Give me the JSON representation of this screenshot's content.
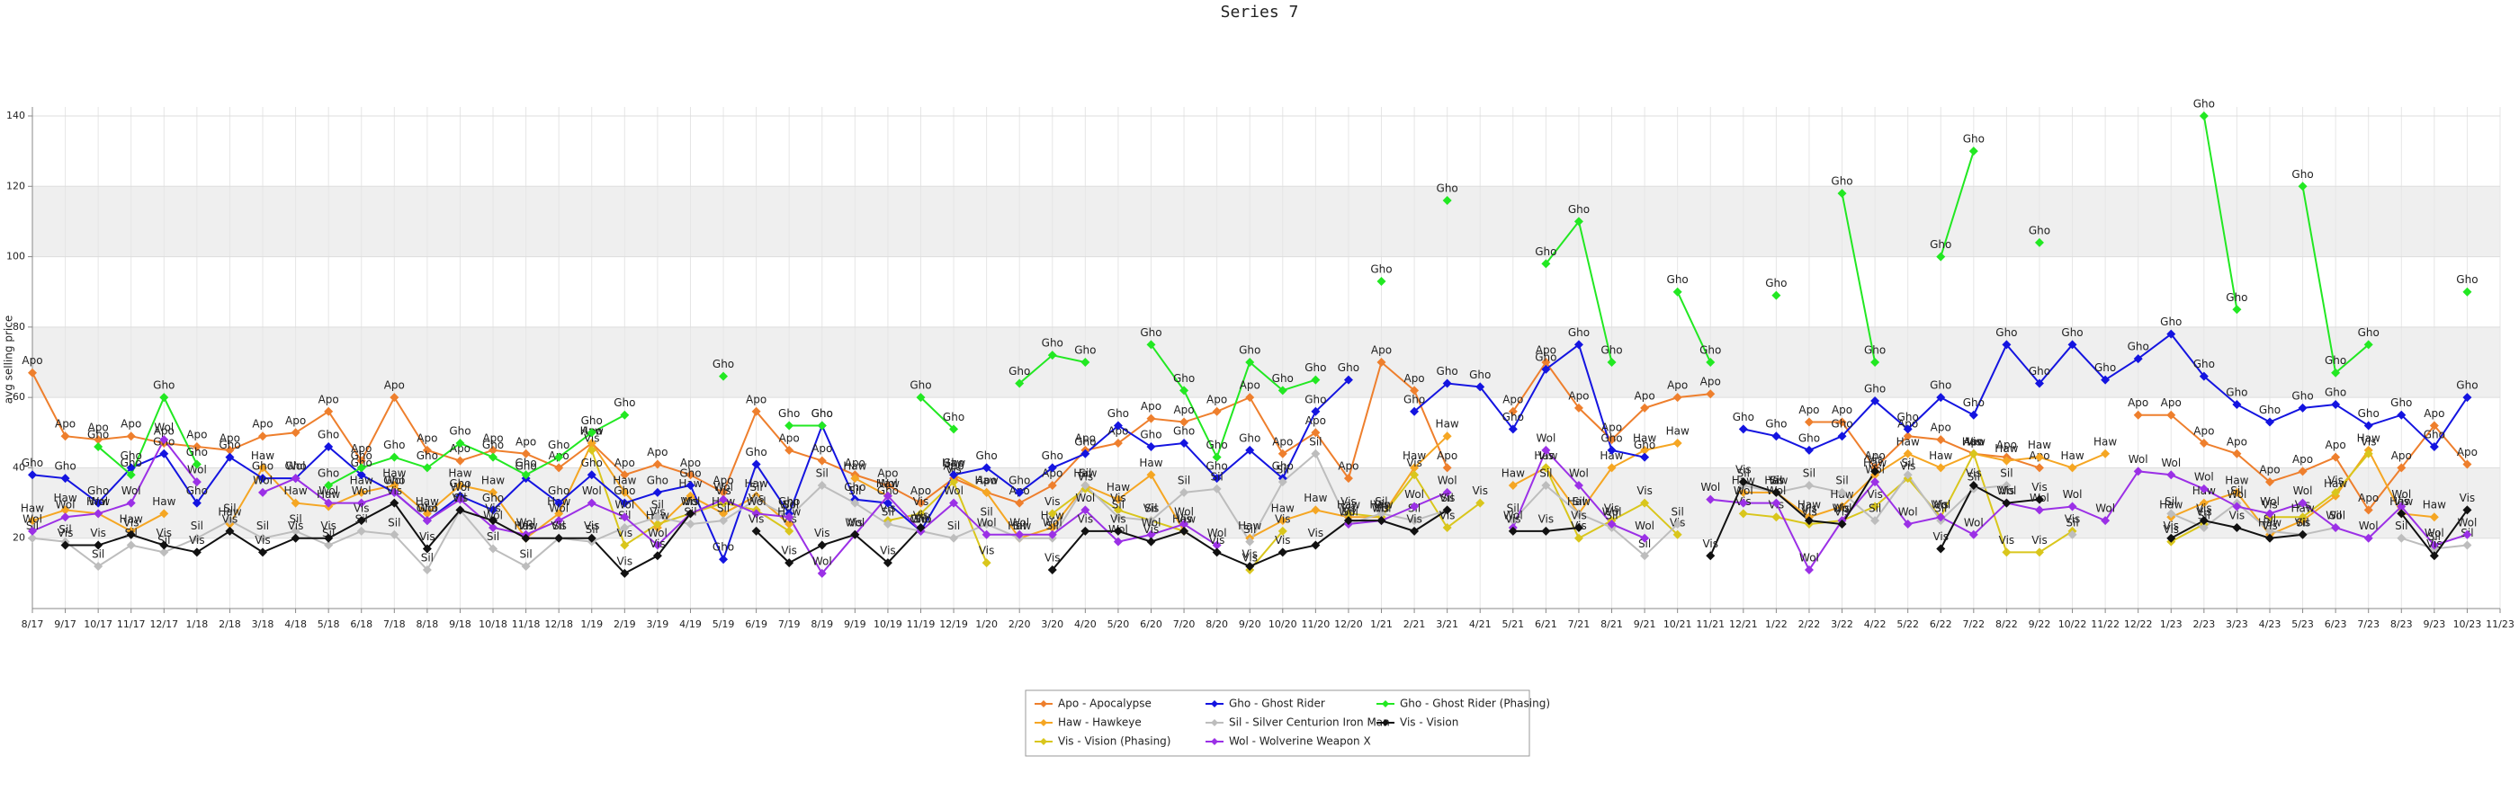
{
  "chart_data": {
    "type": "line",
    "title": "Series 7",
    "y_label": "avg selling price",
    "categories": [
      "8/17",
      "9/17",
      "10/17",
      "11/17",
      "12/17",
      "1/18",
      "2/18",
      "3/18",
      "4/18",
      "5/18",
      "6/18",
      "7/18",
      "8/18",
      "9/18",
      "10/18",
      "11/18",
      "12/18",
      "1/19",
      "2/19",
      "3/19",
      "4/19",
      "5/19",
      "6/19",
      "7/19",
      "8/19",
      "9/19",
      "10/19",
      "11/19",
      "12/19",
      "1/20",
      "2/20",
      "3/20",
      "4/20",
      "5/20",
      "6/20",
      "7/20",
      "8/20",
      "9/20",
      "10/20",
      "11/20",
      "12/20",
      "1/21",
      "2/21",
      "3/21",
      "4/21",
      "5/21",
      "6/21",
      "7/21",
      "8/21",
      "9/21",
      "10/21",
      "11/21",
      "12/21",
      "1/22",
      "2/22",
      "3/22",
      "4/22",
      "5/22",
      "6/22",
      "7/22",
      "8/22",
      "9/22",
      "10/22",
      "11/22",
      "12/22",
      "1/23",
      "2/23",
      "3/23",
      "4/23",
      "5/23",
      "6/23",
      "7/23",
      "8/23",
      "9/23",
      "10/23",
      "11/23"
    ],
    "ylim": [
      0,
      140
    ],
    "yticks": [
      20,
      40,
      60,
      80,
      100,
      120,
      140
    ],
    "grid": true,
    "legend": "bottom",
    "series": [
      {
        "name": "Apo - Apocalypse",
        "abbr": "Apo",
        "color": "#ee7f2d",
        "values": [
          67,
          49,
          48,
          49,
          47,
          46,
          45,
          49,
          50,
          56,
          42,
          60,
          45,
          42,
          45,
          44,
          40,
          47,
          38,
          41,
          38,
          33,
          56,
          45,
          42,
          38,
          35,
          30,
          37,
          33,
          30,
          35,
          45,
          47,
          54,
          53,
          56,
          60,
          44,
          50,
          37,
          70,
          62,
          40,
          null,
          56,
          70,
          57,
          48,
          57,
          60,
          61,
          null,
          null,
          53,
          53,
          40,
          49,
          48,
          44,
          43,
          40,
          null,
          null,
          55,
          55,
          47,
          44,
          36,
          39,
          43,
          28,
          40,
          52,
          41,
          null
        ]
      },
      {
        "name": "Haw - Hawkeye",
        "abbr": "Haw",
        "color": "#f5a623",
        "values": [
          25,
          28,
          27,
          22,
          27,
          null,
          24,
          40,
          30,
          29,
          33,
          35,
          27,
          35,
          33,
          20,
          27,
          47,
          33,
          23,
          32,
          27,
          32,
          24,
          null,
          37,
          32,
          null,
          38,
          33,
          20,
          23,
          35,
          31,
          38,
          22,
          null,
          20,
          25,
          28,
          26,
          26,
          40,
          49,
          null,
          35,
          40,
          27,
          40,
          45,
          47,
          null,
          33,
          33,
          26,
          29,
          38,
          44,
          40,
          44,
          42,
          43,
          40,
          44,
          null,
          26,
          30,
          33,
          21,
          25,
          32,
          45,
          27,
          26,
          null,
          null
        ]
      },
      {
        "name": "Vis - Vision (Phasing)",
        "abbr": "Vis",
        "color": "#d9c61c",
        "values": [
          null,
          null,
          null,
          null,
          null,
          null,
          null,
          null,
          null,
          null,
          null,
          null,
          null,
          null,
          null,
          null,
          null,
          45,
          18,
          24,
          27,
          30,
          28,
          22,
          null,
          null,
          25,
          27,
          36,
          13,
          null,
          27,
          34,
          28,
          25,
          22,
          null,
          11,
          22,
          null,
          27,
          26,
          38,
          23,
          30,
          null,
          40,
          20,
          25,
          30,
          21,
          null,
          27,
          26,
          24,
          25,
          29,
          37,
          26,
          44,
          16,
          16,
          22,
          null,
          null,
          19,
          24,
          null,
          26,
          26,
          33,
          44,
          null,
          null,
          null,
          null
        ]
      },
      {
        "name": "Gho - Ghost Rider",
        "abbr": "Gho",
        "color": "#1414e0",
        "values": [
          38,
          37,
          30,
          40,
          44,
          30,
          43,
          37,
          37,
          46,
          38,
          33,
          25,
          32,
          28,
          37,
          30,
          38,
          30,
          33,
          35,
          14,
          41,
          27,
          52,
          31,
          30,
          22,
          38,
          40,
          33,
          40,
          44,
          52,
          46,
          47,
          37,
          45,
          37,
          56,
          65,
          null,
          56,
          64,
          63,
          51,
          68,
          75,
          45,
          43,
          null,
          null,
          51,
          49,
          45,
          49,
          59,
          51,
          60,
          55,
          75,
          64,
          75,
          65,
          71,
          78,
          66,
          58,
          53,
          57,
          58,
          52,
          55,
          46,
          60,
          null
        ]
      },
      {
        "name": "Sil - Silver Centurion Iron Man",
        "abbr": "Sil",
        "color": "#bdbdbd",
        "values": [
          20,
          19,
          12,
          18,
          16,
          20,
          25,
          20,
          22,
          18,
          22,
          21,
          11,
          28,
          17,
          12,
          20,
          19,
          23,
          26,
          24,
          25,
          31,
          26,
          35,
          30,
          24,
          22,
          20,
          24,
          20,
          20,
          35,
          26,
          25,
          33,
          34,
          19,
          36,
          44,
          24,
          27,
          25,
          28,
          null,
          25,
          35,
          27,
          23,
          15,
          24,
          null,
          35,
          33,
          35,
          33,
          25,
          38,
          25,
          34,
          35,
          null,
          21,
          null,
          null,
          27,
          23,
          30,
          22,
          21,
          23,
          null,
          20,
          17,
          18,
          null
        ]
      },
      {
        "name": "Wol - Wolverine Weapon X",
        "abbr": "Wol",
        "color": "#9b30e6",
        "values": [
          22,
          26,
          27,
          30,
          48,
          36,
          null,
          33,
          37,
          30,
          30,
          33,
          25,
          31,
          23,
          21,
          25,
          30,
          26,
          18,
          27,
          31,
          27,
          26,
          10,
          21,
          32,
          22,
          30,
          21,
          21,
          21,
          28,
          19,
          21,
          24,
          18,
          null,
          null,
          null,
          24,
          25,
          29,
          33,
          null,
          23,
          45,
          35,
          24,
          20,
          null,
          31,
          30,
          30,
          11,
          25,
          36,
          24,
          26,
          21,
          30,
          28,
          29,
          25,
          39,
          38,
          34,
          29,
          27,
          30,
          23,
          20,
          29,
          18,
          21,
          null
        ]
      },
      {
        "name": "Gho - Ghost Rider (Phasing)",
        "abbr": "Gho",
        "color": "#22e822",
        "values": [
          null,
          null,
          46,
          38,
          60,
          41,
          null,
          null,
          null,
          35,
          40,
          43,
          40,
          47,
          43,
          38,
          43,
          50,
          55,
          null,
          null,
          66,
          null,
          52,
          52,
          null,
          null,
          60,
          51,
          null,
          64,
          72,
          70,
          null,
          75,
          62,
          43,
          70,
          62,
          65,
          null,
          93,
          null,
          116,
          null,
          null,
          98,
          110,
          70,
          null,
          90,
          70,
          null,
          89,
          null,
          118,
          70,
          null,
          100,
          130,
          null,
          104,
          null,
          null,
          null,
          null,
          140,
          85,
          null,
          120,
          67,
          75,
          null,
          null,
          90,
          null
        ]
      },
      {
        "name": "Vis - Vision",
        "abbr": "Vis",
        "color": "#111111",
        "values": [
          null,
          18,
          18,
          21,
          18,
          16,
          22,
          16,
          20,
          20,
          25,
          30,
          17,
          28,
          25,
          20,
          20,
          20,
          10,
          15,
          27,
          null,
          22,
          13,
          18,
          21,
          13,
          23,
          null,
          null,
          null,
          11,
          22,
          22,
          19,
          22,
          16,
          12,
          16,
          18,
          25,
          25,
          22,
          28,
          null,
          22,
          22,
          23,
          null,
          null,
          null,
          15,
          36,
          33,
          25,
          24,
          39,
          null,
          17,
          35,
          30,
          31,
          null,
          null,
          null,
          20,
          25,
          23,
          20,
          21,
          null,
          null,
          27,
          15,
          28,
          null
        ]
      }
    ]
  }
}
